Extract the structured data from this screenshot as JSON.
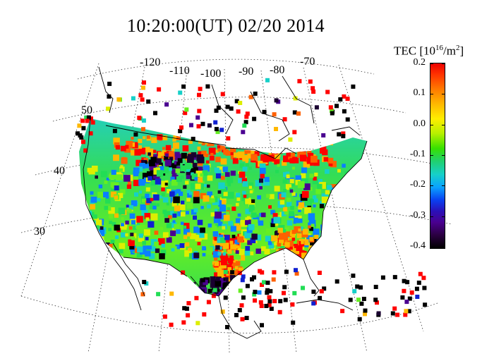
{
  "title": "10:20:00(UT)  02/20 2014",
  "colorbar": {
    "title_main": "TEC [10",
    "title_sup": "16",
    "title_tail": "/m",
    "title_sup2": "2",
    "title_end": "]",
    "ticks": [
      "0.2",
      "0.1",
      "0.0",
      "-0.1",
      "-0.2",
      "-0.3",
      "-0.4"
    ],
    "range": [
      -0.4,
      0.2
    ]
  },
  "longitude_labels": [
    "-120",
    "-110",
    "-100",
    "-90",
    "-80",
    "-70"
  ],
  "latitude_labels": [
    "50",
    "40",
    "30"
  ],
  "colors": {
    "positive": "#ff0000",
    "neutral": "#33dd33",
    "negative": "#000000",
    "water_gap": "#ffffff"
  }
}
